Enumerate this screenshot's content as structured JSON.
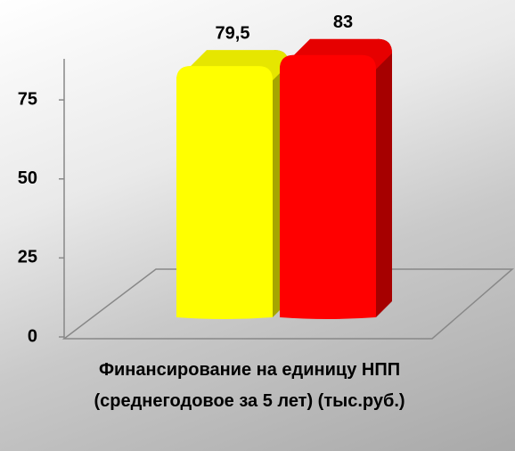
{
  "chart_data": {
    "type": "bar3d",
    "categories": [
      "Финансирование на единицу НПП (среднегодовое за 5 лет) (тыс.руб.)"
    ],
    "series": [
      {
        "color": "#ffff00",
        "values": [
          79.5
        ],
        "value_labels": [
          "79,5"
        ]
      },
      {
        "color": "#ff0000",
        "values": [
          83
        ],
        "value_labels": [
          "83"
        ]
      }
    ],
    "ylim": [
      0,
      88
    ],
    "yticks": [
      0,
      25,
      50,
      75
    ]
  }
}
